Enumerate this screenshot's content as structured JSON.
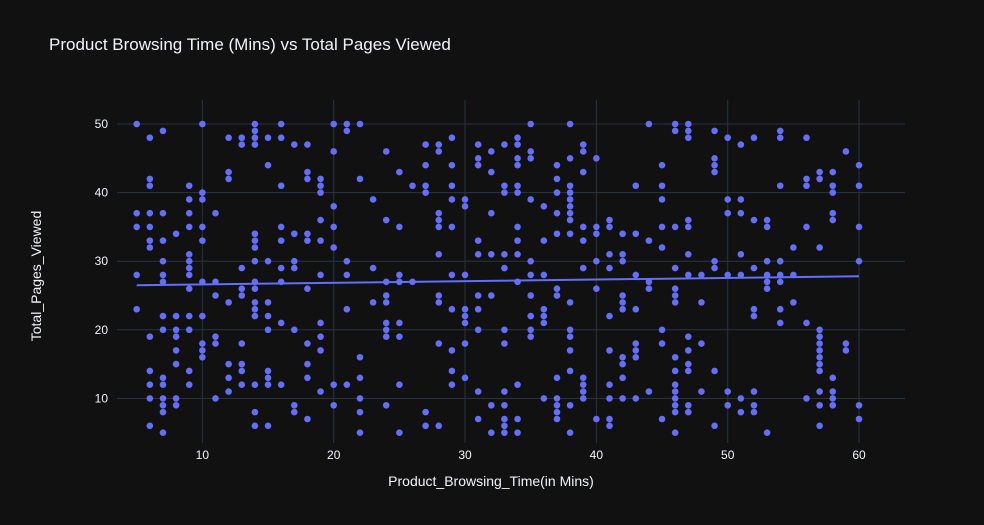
{
  "chart_data": {
    "type": "scatter",
    "title": "Product Browsing Time (Mins) vs Total Pages Viewed",
    "xlabel": "Product_Browsing_Time(in Mins)",
    "ylabel": "Total_Pages_Viewed",
    "xlim": [
      3.5,
      63.5
    ],
    "ylim": [
      3.5,
      53.5
    ],
    "x_ticks": [
      10,
      20,
      30,
      40,
      50,
      60
    ],
    "y_ticks": [
      10,
      20,
      30,
      40,
      50
    ],
    "grid": true,
    "colors": {
      "background": "#111111",
      "grid": "#283442",
      "points": "#636efa",
      "trendline": "#636efa",
      "text": "#f2f5fa"
    },
    "trendline": {
      "x": [
        5,
        60
      ],
      "y": [
        26.5,
        27.8
      ]
    },
    "points": [
      [
        5,
        50
      ],
      [
        5,
        37
      ],
      [
        5,
        35
      ],
      [
        5,
        28
      ],
      [
        5,
        23
      ],
      [
        6,
        48
      ],
      [
        6,
        42
      ],
      [
        6,
        41
      ],
      [
        6,
        37
      ],
      [
        6,
        35
      ],
      [
        6,
        33
      ],
      [
        6,
        32
      ],
      [
        6,
        19
      ],
      [
        6,
        14
      ],
      [
        6,
        12
      ],
      [
        6,
        10
      ],
      [
        6,
        6
      ],
      [
        7,
        49
      ],
      [
        7,
        37
      ],
      [
        7,
        33
      ],
      [
        7,
        30
      ],
      [
        7,
        28
      ],
      [
        7,
        27
      ],
      [
        7,
        22
      ],
      [
        7,
        20
      ],
      [
        7,
        13
      ],
      [
        7,
        12
      ],
      [
        7,
        10
      ],
      [
        7,
        9
      ],
      [
        7,
        8
      ],
      [
        7,
        5
      ],
      [
        8,
        34
      ],
      [
        8,
        22
      ],
      [
        8,
        20
      ],
      [
        8,
        19
      ],
      [
        8,
        17
      ],
      [
        8,
        15
      ],
      [
        8,
        10
      ],
      [
        8,
        9
      ],
      [
        9,
        41
      ],
      [
        9,
        39
      ],
      [
        9,
        37
      ],
      [
        9,
        35
      ],
      [
        9,
        31
      ],
      [
        9,
        30
      ],
      [
        9,
        29
      ],
      [
        9,
        28
      ],
      [
        9,
        26
      ],
      [
        9,
        22
      ],
      [
        9,
        20
      ],
      [
        9,
        14
      ],
      [
        9,
        12
      ],
      [
        10,
        50
      ],
      [
        10,
        40
      ],
      [
        10,
        39
      ],
      [
        10,
        35
      ],
      [
        10,
        33
      ],
      [
        10,
        27
      ],
      [
        10,
        22
      ],
      [
        10,
        18
      ],
      [
        10,
        17
      ],
      [
        10,
        16
      ],
      [
        11,
        37
      ],
      [
        11,
        27
      ],
      [
        11,
        25
      ],
      [
        11,
        19
      ],
      [
        11,
        18
      ],
      [
        11,
        10
      ],
      [
        12,
        48
      ],
      [
        12,
        43
      ],
      [
        12,
        42
      ],
      [
        12,
        24
      ],
      [
        12,
        15
      ],
      [
        12,
        13
      ],
      [
        12,
        11
      ],
      [
        13,
        48
      ],
      [
        13,
        47
      ],
      [
        13,
        29
      ],
      [
        13,
        26
      ],
      [
        13,
        25
      ],
      [
        13,
        18
      ],
      [
        13,
        15
      ],
      [
        13,
        14
      ],
      [
        13,
        12
      ],
      [
        14,
        50
      ],
      [
        14,
        49
      ],
      [
        14,
        48
      ],
      [
        14,
        47
      ],
      [
        14,
        34
      ],
      [
        14,
        33
      ],
      [
        14,
        32
      ],
      [
        14,
        30
      ],
      [
        14,
        27
      ],
      [
        14,
        26
      ],
      [
        14,
        24
      ],
      [
        14,
        23
      ],
      [
        14,
        22
      ],
      [
        14,
        12
      ],
      [
        14,
        8
      ],
      [
        14,
        6
      ],
      [
        15,
        48
      ],
      [
        15,
        44
      ],
      [
        15,
        30
      ],
      [
        15,
        24
      ],
      [
        15,
        22
      ],
      [
        15,
        20
      ],
      [
        15,
        14
      ],
      [
        15,
        13
      ],
      [
        15,
        12
      ],
      [
        15,
        6
      ],
      [
        16,
        50
      ],
      [
        16,
        48
      ],
      [
        16,
        41
      ],
      [
        16,
        35
      ],
      [
        16,
        33
      ],
      [
        16,
        29
      ],
      [
        16,
        27
      ],
      [
        16,
        21
      ],
      [
        16,
        12
      ],
      [
        17,
        47
      ],
      [
        17,
        34
      ],
      [
        17,
        30
      ],
      [
        17,
        29
      ],
      [
        17,
        20
      ],
      [
        17,
        9
      ],
      [
        17,
        8
      ],
      [
        18,
        47
      ],
      [
        18,
        43
      ],
      [
        18,
        42
      ],
      [
        18,
        34
      ],
      [
        18,
        33
      ],
      [
        18,
        26
      ],
      [
        18,
        18
      ],
      [
        18,
        15
      ],
      [
        18,
        13
      ],
      [
        18,
        7
      ],
      [
        19,
        42
      ],
      [
        19,
        41
      ],
      [
        19,
        40
      ],
      [
        19,
        36
      ],
      [
        19,
        33
      ],
      [
        19,
        28
      ],
      [
        19,
        21
      ],
      [
        19,
        19
      ],
      [
        19,
        17
      ],
      [
        19,
        11
      ],
      [
        20,
        50
      ],
      [
        20,
        46
      ],
      [
        20,
        38
      ],
      [
        20,
        35
      ],
      [
        20,
        32
      ],
      [
        20,
        12
      ],
      [
        20,
        9
      ],
      [
        21,
        50
      ],
      [
        21,
        49
      ],
      [
        21,
        30
      ],
      [
        21,
        28
      ],
      [
        21,
        23
      ],
      [
        21,
        12
      ],
      [
        22,
        50
      ],
      [
        22,
        42
      ],
      [
        22,
        16
      ],
      [
        22,
        13
      ],
      [
        22,
        10
      ],
      [
        22,
        8
      ],
      [
        22,
        5
      ],
      [
        23,
        39
      ],
      [
        23,
        29
      ],
      [
        23,
        24
      ],
      [
        24,
        46
      ],
      [
        24,
        36
      ],
      [
        24,
        27
      ],
      [
        24,
        25
      ],
      [
        24,
        24
      ],
      [
        24,
        21
      ],
      [
        24,
        20
      ],
      [
        24,
        19
      ],
      [
        24,
        9
      ],
      [
        25,
        43
      ],
      [
        25,
        35
      ],
      [
        25,
        28
      ],
      [
        25,
        27
      ],
      [
        25,
        21
      ],
      [
        25,
        19
      ],
      [
        25,
        12
      ],
      [
        25,
        5
      ],
      [
        26,
        41
      ],
      [
        26,
        27
      ],
      [
        27,
        47
      ],
      [
        27,
        44
      ],
      [
        27,
        41
      ],
      [
        27,
        40
      ],
      [
        27,
        8
      ],
      [
        27,
        6
      ],
      [
        28,
        47
      ],
      [
        28,
        46
      ],
      [
        28,
        37
      ],
      [
        28,
        36
      ],
      [
        28,
        35
      ],
      [
        28,
        31
      ],
      [
        28,
        25
      ],
      [
        28,
        24
      ],
      [
        28,
        18
      ],
      [
        28,
        6
      ],
      [
        29,
        48
      ],
      [
        29,
        44
      ],
      [
        29,
        41
      ],
      [
        29,
        39
      ],
      [
        29,
        35
      ],
      [
        29,
        28
      ],
      [
        29,
        23
      ],
      [
        29,
        17
      ],
      [
        29,
        14
      ],
      [
        29,
        12
      ],
      [
        30,
        39
      ],
      [
        30,
        38
      ],
      [
        30,
        28
      ],
      [
        30,
        23
      ],
      [
        30,
        22
      ],
      [
        30,
        21
      ],
      [
        30,
        18
      ],
      [
        30,
        13
      ],
      [
        31,
        47
      ],
      [
        31,
        45
      ],
      [
        31,
        44
      ],
      [
        31,
        33
      ],
      [
        31,
        31
      ],
      [
        31,
        25
      ],
      [
        31,
        23
      ],
      [
        31,
        20
      ],
      [
        31,
        11
      ],
      [
        31,
        7
      ],
      [
        32,
        46
      ],
      [
        32,
        43
      ],
      [
        32,
        37
      ],
      [
        32,
        31
      ],
      [
        32,
        25
      ],
      [
        32,
        9
      ],
      [
        32,
        5
      ],
      [
        33,
        47
      ],
      [
        33,
        41
      ],
      [
        33,
        40
      ],
      [
        33,
        31
      ],
      [
        33,
        29
      ],
      [
        33,
        20
      ],
      [
        33,
        18
      ],
      [
        33,
        11
      ],
      [
        33,
        9
      ],
      [
        33,
        7
      ],
      [
        33,
        6
      ],
      [
        33,
        5
      ],
      [
        34,
        48
      ],
      [
        34,
        47
      ],
      [
        34,
        45
      ],
      [
        34,
        44
      ],
      [
        34,
        41
      ],
      [
        34,
        40
      ],
      [
        34,
        35
      ],
      [
        34,
        33
      ],
      [
        34,
        31
      ],
      [
        34,
        27
      ],
      [
        34,
        12
      ],
      [
        34,
        7
      ],
      [
        34,
        5
      ],
      [
        35,
        50
      ],
      [
        35,
        46
      ],
      [
        35,
        45
      ],
      [
        35,
        39
      ],
      [
        35,
        30
      ],
      [
        35,
        28
      ],
      [
        35,
        25
      ],
      [
        35,
        22
      ],
      [
        35,
        20
      ],
      [
        35,
        19
      ],
      [
        36,
        38
      ],
      [
        36,
        33
      ],
      [
        36,
        28
      ],
      [
        36,
        23
      ],
      [
        36,
        22
      ],
      [
        36,
        21
      ],
      [
        36,
        10
      ],
      [
        37,
        44
      ],
      [
        37,
        42
      ],
      [
        37,
        40
      ],
      [
        37,
        37
      ],
      [
        37,
        34
      ],
      [
        37,
        26
      ],
      [
        37,
        25
      ],
      [
        37,
        13
      ],
      [
        37,
        10
      ],
      [
        37,
        9
      ],
      [
        37,
        8
      ],
      [
        37,
        7
      ],
      [
        38,
        50
      ],
      [
        38,
        45
      ],
      [
        38,
        41
      ],
      [
        38,
        40
      ],
      [
        38,
        39
      ],
      [
        38,
        38
      ],
      [
        38,
        37
      ],
      [
        38,
        36
      ],
      [
        38,
        34
      ],
      [
        38,
        24
      ],
      [
        38,
        20
      ],
      [
        38,
        19
      ],
      [
        38,
        17
      ],
      [
        38,
        14
      ],
      [
        38,
        9
      ],
      [
        38,
        5
      ],
      [
        39,
        47
      ],
      [
        39,
        46
      ],
      [
        39,
        43
      ],
      [
        39,
        35
      ],
      [
        39,
        33
      ],
      [
        39,
        29
      ],
      [
        39,
        13
      ],
      [
        39,
        12
      ],
      [
        39,
        11
      ],
      [
        39,
        10
      ],
      [
        40,
        45
      ],
      [
        40,
        35
      ],
      [
        40,
        34
      ],
      [
        40,
        30
      ],
      [
        40,
        26
      ],
      [
        40,
        7
      ],
      [
        41,
        36
      ],
      [
        41,
        35
      ],
      [
        41,
        31
      ],
      [
        41,
        29
      ],
      [
        41,
        22
      ],
      [
        41,
        17
      ],
      [
        41,
        12
      ],
      [
        41,
        10
      ],
      [
        41,
        7
      ],
      [
        41,
        6
      ],
      [
        42,
        34
      ],
      [
        42,
        31
      ],
      [
        42,
        30
      ],
      [
        42,
        25
      ],
      [
        42,
        24
      ],
      [
        42,
        23
      ],
      [
        42,
        16
      ],
      [
        42,
        15
      ],
      [
        42,
        13
      ],
      [
        42,
        10
      ],
      [
        43,
        41
      ],
      [
        43,
        34
      ],
      [
        43,
        28
      ],
      [
        43,
        23
      ],
      [
        43,
        18
      ],
      [
        43,
        17
      ],
      [
        43,
        16
      ],
      [
        43,
        10
      ],
      [
        44,
        50
      ],
      [
        44,
        33
      ],
      [
        44,
        27
      ],
      [
        44,
        26
      ],
      [
        44,
        11
      ],
      [
        45,
        44
      ],
      [
        45,
        41
      ],
      [
        45,
        39
      ],
      [
        45,
        35
      ],
      [
        45,
        32
      ],
      [
        45,
        20
      ],
      [
        45,
        18
      ],
      [
        45,
        7
      ],
      [
        46,
        50
      ],
      [
        46,
        49
      ],
      [
        46,
        35
      ],
      [
        46,
        29
      ],
      [
        46,
        26
      ],
      [
        46,
        25
      ],
      [
        46,
        24
      ],
      [
        46,
        16
      ],
      [
        46,
        14
      ],
      [
        46,
        12
      ],
      [
        46,
        11
      ],
      [
        46,
        10
      ],
      [
        46,
        9
      ],
      [
        46,
        8
      ],
      [
        46,
        5
      ],
      [
        47,
        50
      ],
      [
        47,
        49
      ],
      [
        47,
        48
      ],
      [
        47,
        36
      ],
      [
        47,
        35
      ],
      [
        47,
        31
      ],
      [
        47,
        28
      ],
      [
        47,
        19
      ],
      [
        47,
        17
      ],
      [
        47,
        15
      ],
      [
        47,
        14
      ],
      [
        47,
        9
      ],
      [
        47,
        8
      ],
      [
        48,
        28
      ],
      [
        48,
        24
      ],
      [
        48,
        18
      ],
      [
        48,
        11
      ],
      [
        49,
        49
      ],
      [
        49,
        45
      ],
      [
        49,
        44
      ],
      [
        49,
        43
      ],
      [
        49,
        30
      ],
      [
        49,
        29
      ],
      [
        49,
        14
      ],
      [
        49,
        6
      ],
      [
        50,
        48
      ],
      [
        50,
        39
      ],
      [
        50,
        37
      ],
      [
        50,
        28
      ],
      [
        50,
        11
      ],
      [
        50,
        9
      ],
      [
        51,
        47
      ],
      [
        51,
        39
      ],
      [
        51,
        37
      ],
      [
        51,
        31
      ],
      [
        51,
        28
      ],
      [
        51,
        10
      ],
      [
        51,
        8
      ],
      [
        52,
        48
      ],
      [
        52,
        36
      ],
      [
        52,
        29
      ],
      [
        52,
        23
      ],
      [
        52,
        22
      ],
      [
        52,
        11
      ],
      [
        52,
        9
      ],
      [
        52,
        8
      ],
      [
        53,
        36
      ],
      [
        53,
        35
      ],
      [
        53,
        30
      ],
      [
        53,
        28
      ],
      [
        53,
        27
      ],
      [
        53,
        26
      ],
      [
        53,
        5
      ],
      [
        54,
        49
      ],
      [
        54,
        48
      ],
      [
        54,
        41
      ],
      [
        54,
        30
      ],
      [
        54,
        28
      ],
      [
        54,
        27
      ],
      [
        54,
        23
      ],
      [
        54,
        21
      ],
      [
        55,
        32
      ],
      [
        55,
        28
      ],
      [
        55,
        24
      ],
      [
        56,
        48
      ],
      [
        56,
        42
      ],
      [
        56,
        41
      ],
      [
        56,
        35
      ],
      [
        56,
        21
      ],
      [
        56,
        10
      ],
      [
        57,
        43
      ],
      [
        57,
        42
      ],
      [
        57,
        32
      ],
      [
        57,
        20
      ],
      [
        57,
        19
      ],
      [
        57,
        18
      ],
      [
        57,
        17
      ],
      [
        57,
        16
      ],
      [
        57,
        15
      ],
      [
        57,
        14
      ],
      [
        57,
        11
      ],
      [
        57,
        9
      ],
      [
        57,
        6
      ],
      [
        58,
        43
      ],
      [
        58,
        41
      ],
      [
        58,
        40
      ],
      [
        58,
        37
      ],
      [
        58,
        36
      ],
      [
        58,
        13
      ],
      [
        58,
        11
      ],
      [
        58,
        10
      ],
      [
        58,
        9
      ],
      [
        59,
        46
      ],
      [
        59,
        18
      ],
      [
        59,
        17
      ],
      [
        60,
        44
      ],
      [
        60,
        41
      ],
      [
        60,
        35
      ],
      [
        60,
        30
      ],
      [
        60,
        9
      ],
      [
        60,
        7
      ]
    ]
  }
}
